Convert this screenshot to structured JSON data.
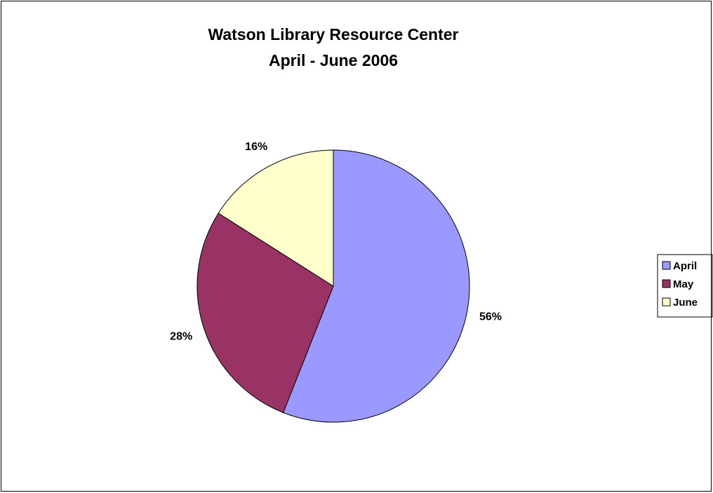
{
  "chart_data": {
    "type": "pie",
    "title": "Watson Library Resource Center",
    "subtitle": "April - June 2006",
    "categories": [
      "April",
      "May",
      "June"
    ],
    "values": [
      56,
      28,
      16
    ],
    "value_labels": [
      "56%",
      "28%",
      "16%"
    ],
    "colors": [
      "#9999ff",
      "#993366",
      "#ffffcc"
    ],
    "legend_placement": "right"
  }
}
